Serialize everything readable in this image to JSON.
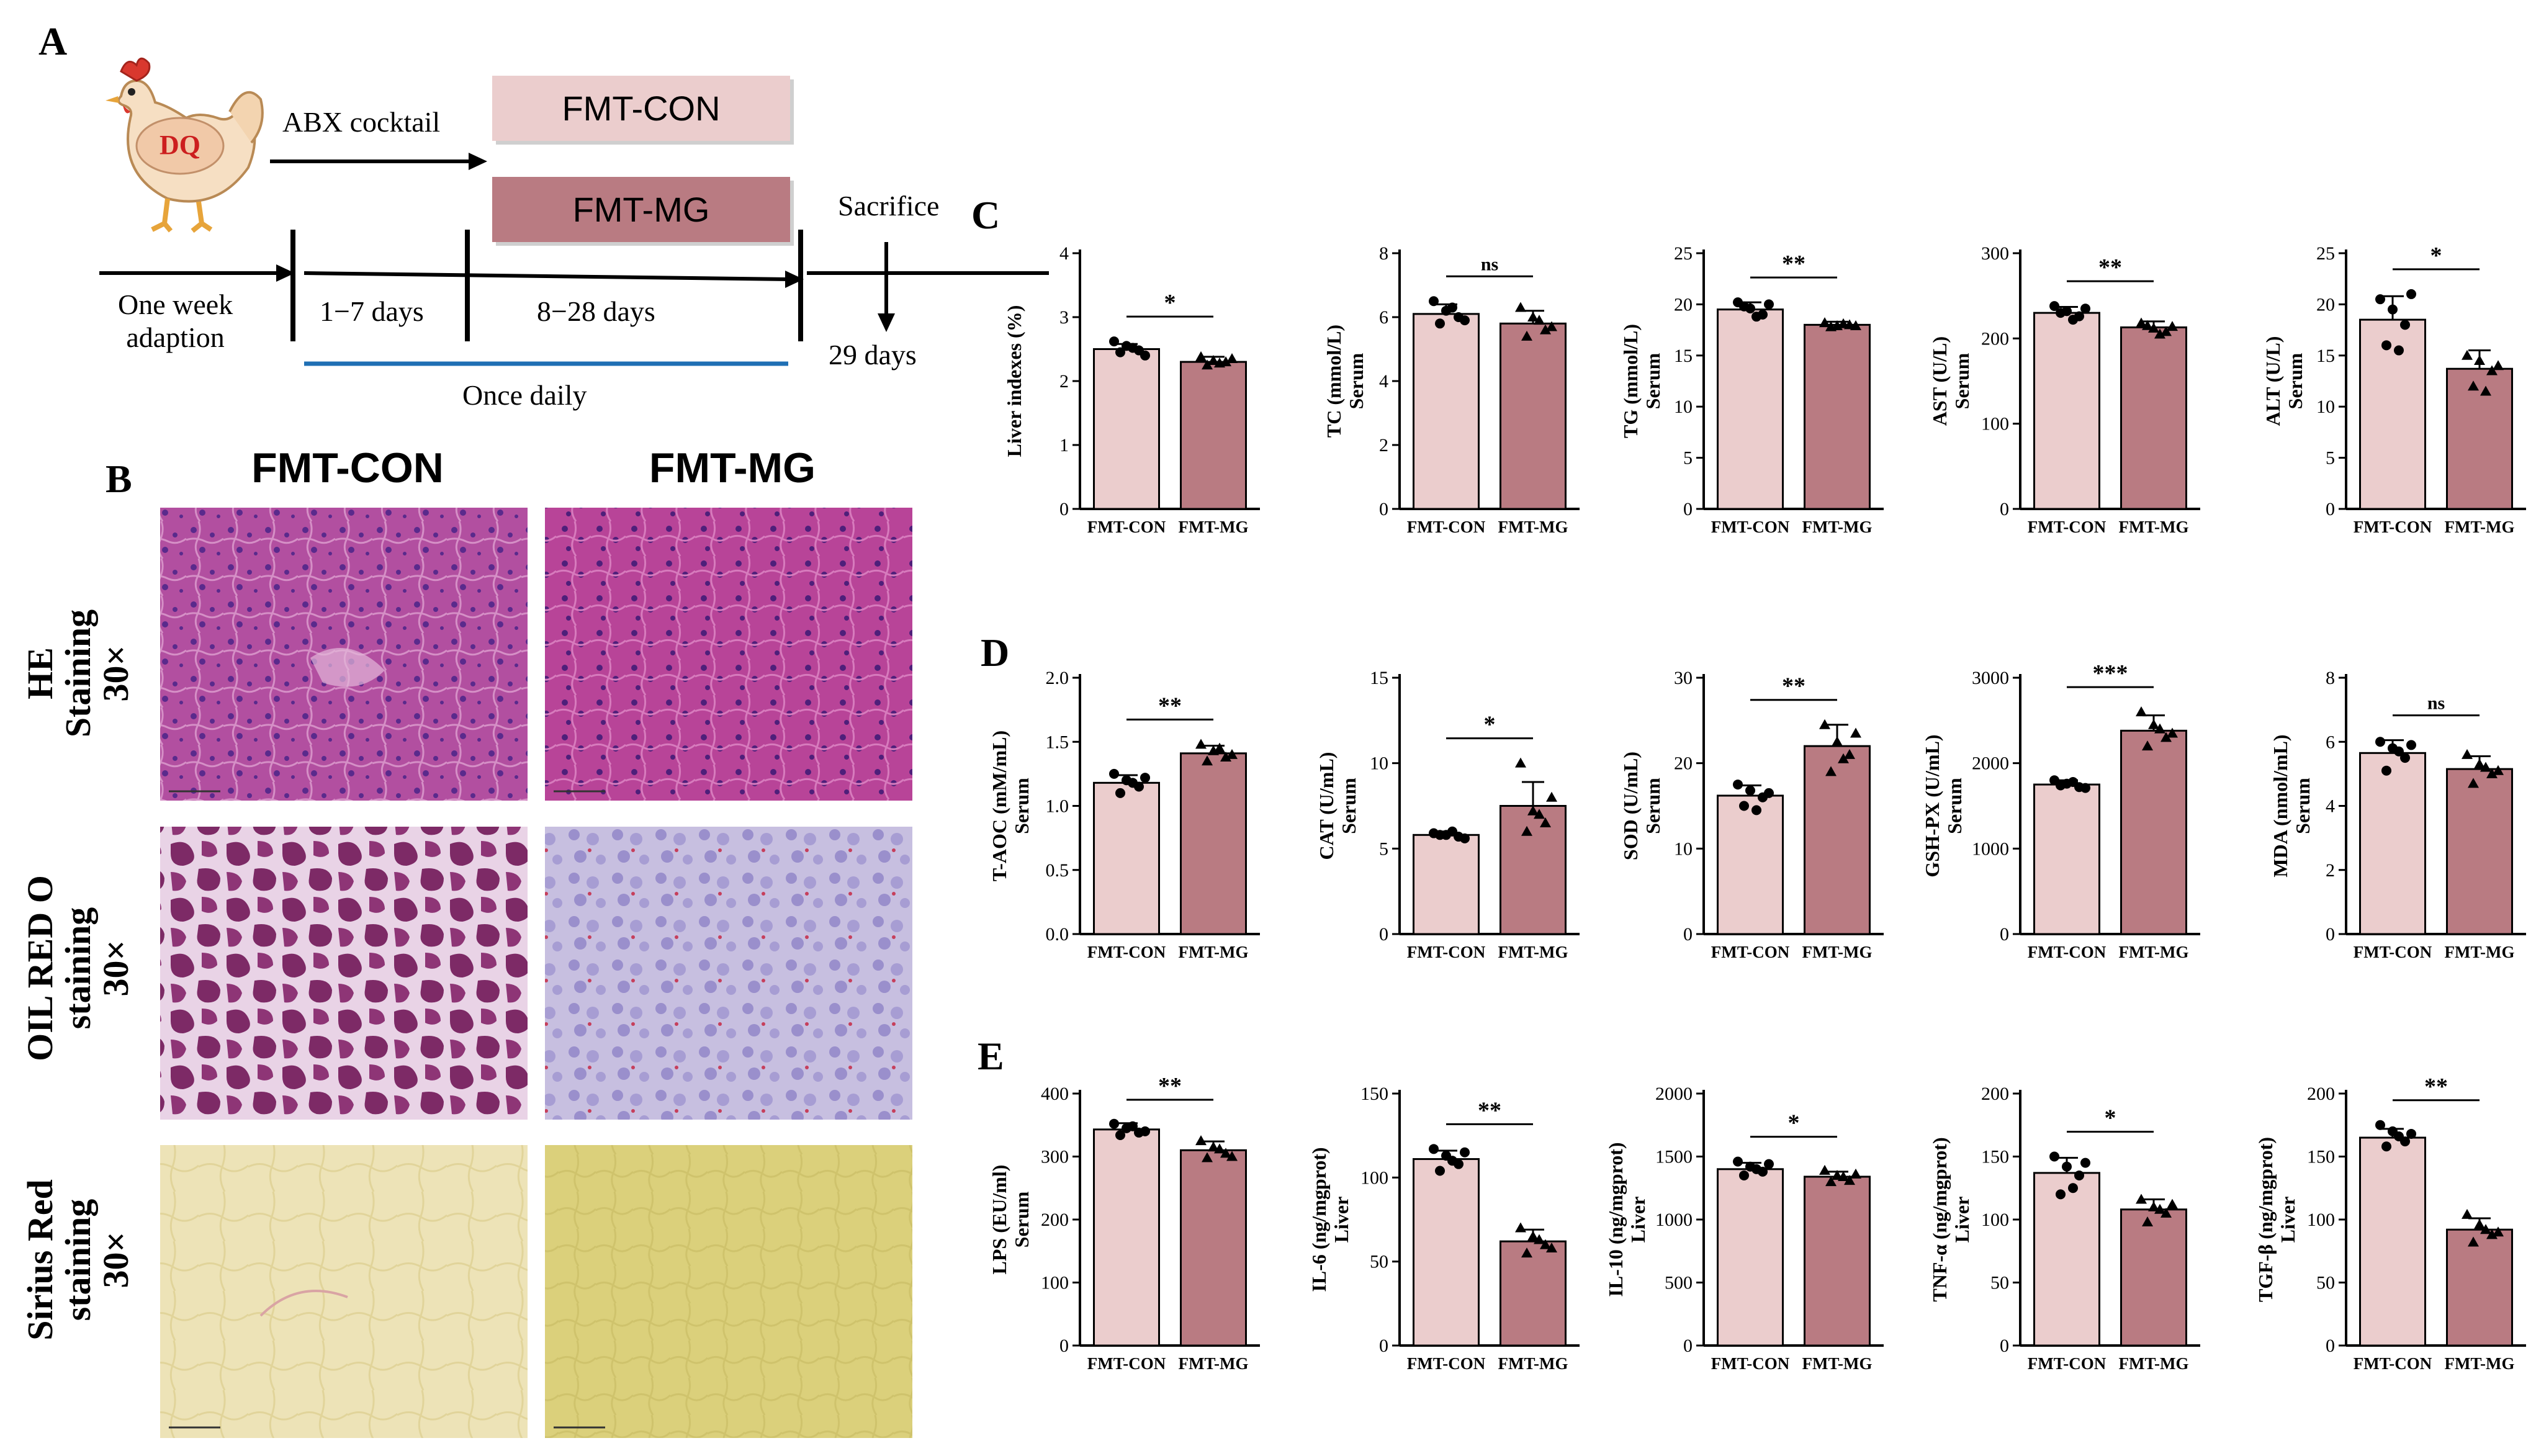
{
  "panel_labels": {
    "a": "A",
    "b": "B",
    "c": "C",
    "d": "D",
    "e": "E"
  },
  "diagram": {
    "hen_label": "DQ",
    "abx_label": "ABX cocktail",
    "groups": [
      {
        "name": "FMT-CON",
        "color": "#ebcdcd"
      },
      {
        "name": "FMT-MG",
        "color": "#b97b82"
      }
    ],
    "sacrifice_label": "Sacrifice",
    "timeline": [
      "One week\nadaption",
      "1−7 days",
      "8−28 days"
    ],
    "day29_label": "29 days",
    "once_daily_label": "Once daily",
    "once_daily_color": "#1f6fb4"
  },
  "histology": {
    "columns": [
      "FMT-CON",
      "FMT-MG"
    ],
    "rows": [
      {
        "label": "HE\nStaining\n30×",
        "stain": "he"
      },
      {
        "label": "OIL RED O\nstaining\n30×",
        "stain": "oil"
      },
      {
        "label": "Sirius Red\nstaining\n30×",
        "stain": "sirius"
      }
    ]
  },
  "colors": {
    "con": "#ebcdcd",
    "mg": "#b97b82"
  },
  "chart_data": [
    {
      "type": "bar",
      "panel": "C",
      "ylabel": "Liver indexes (%)",
      "ylabel2": "",
      "categories": [
        "FMT-CON",
        "FMT-MG"
      ],
      "values": [
        2.5,
        2.3
      ],
      "err": [
        0.08,
        0.08
      ],
      "ylim": [
        0,
        4
      ],
      "ticks": [
        "0",
        "1",
        "2",
        "3",
        "4"
      ],
      "sig": "*",
      "points": [
        [
          2.62,
          2.55,
          2.48,
          2.45,
          2.52,
          2.4
        ],
        [
          2.38,
          2.32,
          2.3,
          2.25,
          2.28,
          2.35
        ]
      ]
    },
    {
      "type": "bar",
      "panel": "C",
      "ylabel": "TC (mmol/L)",
      "ylabel2": "Serum",
      "categories": [
        "FMT-CON",
        "FMT-MG"
      ],
      "values": [
        6.1,
        5.8
      ],
      "err": [
        0.3,
        0.4
      ],
      "ylim": [
        0,
        8
      ],
      "ticks": [
        "0",
        "2",
        "4",
        "6",
        "8"
      ],
      "sig": "ns",
      "points": [
        [
          6.5,
          6.2,
          6.0,
          5.8,
          6.3,
          5.9
        ],
        [
          6.3,
          6.0,
          5.6,
          5.4,
          5.9,
          5.7
        ]
      ]
    },
    {
      "type": "bar",
      "panel": "C",
      "ylabel": "TG (mmol/L)",
      "ylabel2": "Serum",
      "categories": [
        "FMT-CON",
        "FMT-MG"
      ],
      "values": [
        19.5,
        18.0
      ],
      "err": [
        0.7,
        0.3
      ],
      "ylim": [
        0,
        25
      ],
      "ticks": [
        "0",
        "5",
        "10",
        "15",
        "20",
        "25"
      ],
      "sig": "**",
      "points": [
        [
          20.2,
          19.6,
          19.0,
          19.8,
          18.8,
          20.0
        ],
        [
          18.2,
          17.9,
          18.0,
          17.8,
          18.1,
          17.9
        ]
      ]
    },
    {
      "type": "bar",
      "panel": "C",
      "ylabel": "AST (U/L)",
      "ylabel2": "Serum",
      "categories": [
        "FMT-CON",
        "FMT-MG"
      ],
      "values": [
        230,
        213
      ],
      "err": [
        7,
        7
      ],
      "ylim": [
        0,
        300
      ],
      "ticks": [
        "0",
        "100",
        "200",
        "300"
      ],
      "sig": "**",
      "points": [
        [
          238,
          232,
          226,
          230,
          222,
          235
        ],
        [
          218,
          212,
          208,
          215,
          205,
          214
        ]
      ]
    },
    {
      "type": "bar",
      "panel": "C",
      "ylabel": "ALT (U/L)",
      "ylabel2": "Serum",
      "categories": [
        "FMT-CON",
        "FMT-MG"
      ],
      "values": [
        18.5,
        13.7
      ],
      "err": [
        2.3,
        1.8
      ],
      "ylim": [
        0,
        25
      ],
      "ticks": [
        "0",
        "5",
        "10",
        "15",
        "20",
        "25"
      ],
      "sig": "*",
      "points": [
        [
          20.5,
          19.5,
          18.0,
          16.0,
          15.5,
          21.0
        ],
        [
          15.0,
          14.5,
          13.5,
          12.0,
          11.5,
          14.0
        ]
      ]
    },
    {
      "type": "bar",
      "panel": "D",
      "ylabel": "T-AOC (mM/mL)",
      "ylabel2": "Serum",
      "categories": [
        "FMT-CON",
        "FMT-MG"
      ],
      "values": [
        1.18,
        1.41
      ],
      "err": [
        0.06,
        0.06
      ],
      "ylim": [
        0,
        2.0
      ],
      "ticks": [
        "0.0",
        "0.5",
        "1.0",
        "1.5",
        "2.0"
      ],
      "sig": "**",
      "points": [
        [
          1.25,
          1.2,
          1.15,
          1.1,
          1.18,
          1.22
        ],
        [
          1.48,
          1.43,
          1.38,
          1.35,
          1.45,
          1.4
        ]
      ]
    },
    {
      "type": "bar",
      "panel": "D",
      "ylabel": "CAT (U/mL)",
      "ylabel2": "Serum",
      "categories": [
        "FMT-CON",
        "FMT-MG"
      ],
      "values": [
        5.8,
        7.5
      ],
      "err": [
        0.2,
        1.4
      ],
      "ylim": [
        0,
        15
      ],
      "ticks": [
        "0",
        "5",
        "10",
        "15"
      ],
      "sig": "*",
      "points": [
        [
          5.9,
          5.8,
          5.7,
          5.8,
          6.0,
          5.6
        ],
        [
          10.0,
          7.2,
          6.5,
          6.0,
          7.0,
          8.0
        ]
      ]
    },
    {
      "type": "bar",
      "panel": "D",
      "ylabel": "SOD (U/mL)",
      "ylabel2": "Serum",
      "categories": [
        "FMT-CON",
        "FMT-MG"
      ],
      "values": [
        16.2,
        22.0
      ],
      "err": [
        1.2,
        2.5
      ],
      "ylim": [
        0,
        30
      ],
      "ticks": [
        "0",
        "10",
        "20",
        "30"
      ],
      "sig": "**",
      "points": [
        [
          17.5,
          16.8,
          16.0,
          15.0,
          14.5,
          16.5
        ],
        [
          24.5,
          22.5,
          21.0,
          19.0,
          20.5,
          23.5
        ]
      ]
    },
    {
      "type": "bar",
      "panel": "D",
      "ylabel": "GSH-PX (U/mL)",
      "ylabel2": "Serum",
      "categories": [
        "FMT-CON",
        "FMT-MG"
      ],
      "values": [
        1750,
        2380
      ],
      "err": [
        50,
        180
      ],
      "ylim": [
        0,
        3000
      ],
      "ticks": [
        "0",
        "1000",
        "2000",
        "3000"
      ],
      "sig": "***",
      "points": [
        [
          1800,
          1760,
          1720,
          1740,
          1780,
          1710
        ],
        [
          2600,
          2450,
          2300,
          2200,
          2400,
          2350
        ]
      ]
    },
    {
      "type": "bar",
      "panel": "D",
      "ylabel": "MDA (nmol/mL)",
      "ylabel2": "Serum",
      "categories": [
        "FMT-CON",
        "FMT-MG"
      ],
      "values": [
        5.65,
        5.15
      ],
      "err": [
        0.4,
        0.4
      ],
      "ylim": [
        0,
        8
      ],
      "ticks": [
        "0",
        "2",
        "4",
        "6",
        "8"
      ],
      "sig": "ns",
      "points": [
        [
          6.0,
          5.8,
          5.5,
          5.1,
          5.7,
          5.9
        ],
        [
          5.6,
          5.3,
          5.0,
          4.7,
          5.2,
          5.1
        ]
      ]
    },
    {
      "type": "bar",
      "panel": "E",
      "ylabel": "LPS (EU/ml)",
      "ylabel2": "Serum",
      "categories": [
        "FMT-CON",
        "FMT-MG"
      ],
      "values": [
        343,
        310
      ],
      "err": [
        10,
        14
      ],
      "ylim": [
        0,
        400
      ],
      "ticks": [
        "0",
        "100",
        "200",
        "300",
        "400"
      ],
      "sig": "**",
      "points": [
        [
          352,
          345,
          338,
          334,
          348,
          340
        ],
        [
          325,
          315,
          305,
          298,
          312,
          300
        ]
      ]
    },
    {
      "type": "bar",
      "panel": "E",
      "ylabel": "IL-6 (ng/mgprot)",
      "ylabel2": "Liver",
      "categories": [
        "FMT-CON",
        "FMT-MG"
      ],
      "values": [
        111,
        62
      ],
      "err": [
        5,
        7
      ],
      "ylim": [
        0,
        150
      ],
      "ticks": [
        "0",
        "50",
        "100",
        "150"
      ],
      "sig": "**",
      "points": [
        [
          117,
          113,
          108,
          104,
          110,
          115
        ],
        [
          70,
          65,
          60,
          55,
          63,
          58
        ]
      ]
    },
    {
      "type": "bar",
      "panel": "E",
      "ylabel": "IL-10 (ng/mgprot)",
      "ylabel2": "Liver",
      "categories": [
        "FMT-CON",
        "FMT-MG"
      ],
      "values": [
        1400,
        1340
      ],
      "err": [
        50,
        40
      ],
      "ylim": [
        0,
        2000
      ],
      "ticks": [
        "0",
        "500",
        "1000",
        "1500",
        "2000"
      ],
      "sig": "*",
      "points": [
        [
          1460,
          1420,
          1380,
          1350,
          1400,
          1440
        ],
        [
          1390,
          1350,
          1310,
          1300,
          1340,
          1360
        ]
      ]
    },
    {
      "type": "bar",
      "panel": "E",
      "ylabel": "TNF-α (ng/mgprot)",
      "ylabel2": "Liver",
      "categories": [
        "FMT-CON",
        "FMT-MG"
      ],
      "values": [
        137,
        108
      ],
      "err": [
        12,
        8
      ],
      "ylim": [
        0,
        200
      ],
      "ticks": [
        "0",
        "50",
        "100",
        "150",
        "200"
      ],
      "sig": "*",
      "points": [
        [
          150,
          142,
          135,
          120,
          125,
          145
        ],
        [
          116,
          110,
          105,
          98,
          108,
          112
        ]
      ]
    },
    {
      "type": "bar",
      "panel": "E",
      "ylabel": "TGF-β (ng/mgprot)",
      "ylabel2": "Liver",
      "categories": [
        "FMT-CON",
        "FMT-MG"
      ],
      "values": [
        165,
        92
      ],
      "err": [
        7,
        9
      ],
      "ylim": [
        0,
        200
      ],
      "ticks": [
        "0",
        "50",
        "100",
        "150",
        "200"
      ],
      "sig": "**",
      "points": [
        [
          175,
          170,
          162,
          158,
          166,
          168
        ],
        [
          104,
          96,
          88,
          82,
          92,
          90
        ]
      ]
    }
  ]
}
